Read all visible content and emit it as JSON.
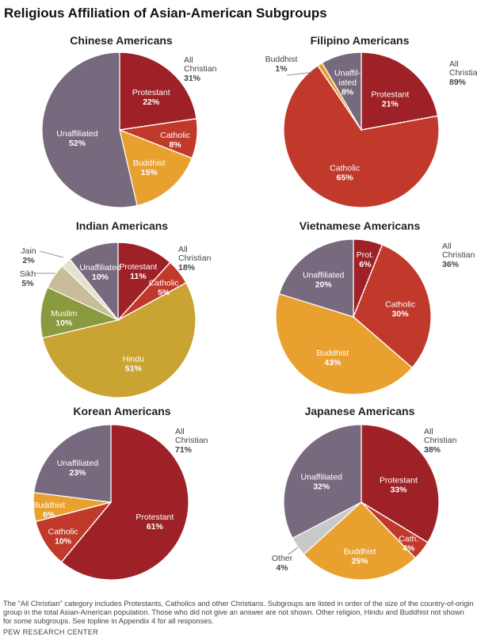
{
  "title": "Religious Affiliation of Asian-American Subgroups",
  "footnote": "The \"All Christian\" category includes Protestants, Catholics and other Christians. Subgroups are listed in order of the size of the country-of-origin group in the total Asian-American population. Those who did not give an answer are not shown. Other religion, Hindu and Buddhist not shown for some subgroups. See topline in Appendix 4 for all responses.",
  "source": "PEW RESEARCH CENTER",
  "colors": {
    "protestant": "#9e2127",
    "catholic": "#c0392b",
    "buddhist": "#e8a12e",
    "unaffiliated": "#786a7e",
    "hindu": "#c9a432",
    "muslim": "#8a9a3e",
    "sikh": "#c8bc9a",
    "jain": "#e5e0cf",
    "other": "#c9c9c9"
  },
  "chart_data": [
    {
      "type": "pie",
      "title": "Chinese Americans",
      "slices": [
        {
          "label": "Protestant",
          "value": 22,
          "display": "22%",
          "color": "#9e2127"
        },
        {
          "label": "Catholic",
          "value": 8,
          "display": "8%",
          "color": "#c0392b"
        },
        {
          "label": "Buddhist",
          "value": 15,
          "display": "15%",
          "color": "#e8a12e"
        },
        {
          "label": "Unaffiliated",
          "value": 52,
          "display": "52%",
          "color": "#786a7e"
        }
      ],
      "all_christian": {
        "line1": "All",
        "line2": "Christian",
        "value": 31,
        "display": "31%"
      }
    },
    {
      "type": "pie",
      "title": "Filipino Americans",
      "slices": [
        {
          "label": "Protestant",
          "value": 21,
          "display": "21%",
          "color": "#9e2127"
        },
        {
          "label": "Catholic",
          "value": 65,
          "display": "65%",
          "color": "#c0392b"
        },
        {
          "label": "Buddhist",
          "value": 1,
          "display": "1%",
          "color": "#e8a12e"
        },
        {
          "label": "Unaffiliated",
          "value": 8,
          "display": "8%",
          "color": "#786a7e"
        }
      ],
      "all_christian": {
        "line1": "All",
        "line2": "Christian",
        "value": 89,
        "display": "89%"
      }
    },
    {
      "type": "pie",
      "title": "Indian Americans",
      "slices": [
        {
          "label": "Protestant",
          "value": 11,
          "display": "11%",
          "color": "#9e2127"
        },
        {
          "label": "Catholic",
          "value": 5,
          "display": "5%",
          "color": "#c0392b"
        },
        {
          "label": "Hindu",
          "value": 51,
          "display": "51%",
          "color": "#c9a432"
        },
        {
          "label": "Muslim",
          "value": 10,
          "display": "10%",
          "color": "#8a9a3e"
        },
        {
          "label": "Sikh",
          "value": 5,
          "display": "5%",
          "color": "#c8bc9a"
        },
        {
          "label": "Jain",
          "value": 2,
          "display": "2%",
          "color": "#e5e0cf"
        },
        {
          "label": "Unaffiliated",
          "value": 10,
          "display": "10%",
          "color": "#786a7e"
        }
      ],
      "all_christian": {
        "line1": "All",
        "line2": "Christian",
        "value": 18,
        "display": "18%"
      }
    },
    {
      "type": "pie",
      "title": "Vietnamese Americans",
      "slices": [
        {
          "label": "Prot.",
          "value": 6,
          "display": "6%",
          "color": "#9e2127"
        },
        {
          "label": "Catholic",
          "value": 30,
          "display": "30%",
          "color": "#c0392b"
        },
        {
          "label": "Buddhist",
          "value": 43,
          "display": "43%",
          "color": "#e8a12e"
        },
        {
          "label": "Unaffiliated",
          "value": 20,
          "display": "20%",
          "color": "#786a7e"
        }
      ],
      "all_christian": {
        "line1": "All",
        "line2": "Christian",
        "value": 36,
        "display": "36%"
      }
    },
    {
      "type": "pie",
      "title": "Korean Americans",
      "slices": [
        {
          "label": "Protestant",
          "value": 61,
          "display": "61%",
          "color": "#9e2127"
        },
        {
          "label": "Catholic",
          "value": 10,
          "display": "10%",
          "color": "#c0392b"
        },
        {
          "label": "Buddhist",
          "value": 6,
          "display": "6%",
          "color": "#e8a12e"
        },
        {
          "label": "Unaffiliated",
          "value": 23,
          "display": "23%",
          "color": "#786a7e"
        }
      ],
      "all_christian": {
        "line1": "All",
        "line2": "Christian",
        "value": 71,
        "display": "71%"
      }
    },
    {
      "type": "pie",
      "title": "Japanese Americans",
      "slices": [
        {
          "label": "Protestant",
          "value": 33,
          "display": "33%",
          "color": "#9e2127"
        },
        {
          "label": "Cath.",
          "value": 4,
          "display": "4%",
          "color": "#c0392b"
        },
        {
          "label": "Buddhist",
          "value": 25,
          "display": "25%",
          "color": "#e8a12e"
        },
        {
          "label": "Other",
          "value": 4,
          "display": "4%",
          "color": "#c9c9c9"
        },
        {
          "label": "Unaffiliated",
          "value": 32,
          "display": "32%",
          "color": "#786a7e"
        }
      ],
      "all_christian": {
        "line1": "All",
        "line2": "Christian",
        "value": 38,
        "display": "38%"
      }
    }
  ]
}
